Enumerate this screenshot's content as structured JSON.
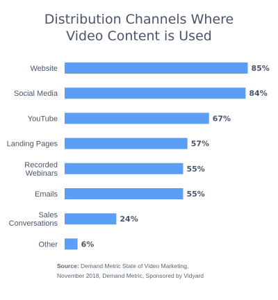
{
  "title_line1": "Distribution Channels Where",
  "title_line2": "Video Content is Used",
  "source_label": "Source:",
  "source_line1": "Demand Metric State of Video Marketing,",
  "source_line2": "November 2018, Demand Metric, Sponsored by Vidyard",
  "colors": {
    "bar": "#5b9ef5",
    "text": "#4a5568"
  },
  "chart_data": {
    "type": "bar",
    "orientation": "horizontal",
    "title": "Distribution Channels Where Video Content is Used",
    "categories": [
      [
        "Website"
      ],
      [
        "Social Media"
      ],
      [
        "YouTube"
      ],
      [
        "Landing Pages"
      ],
      [
        "Recorded",
        "Webinars"
      ],
      [
        "Emails"
      ],
      [
        "Sales",
        "Conversations"
      ],
      [
        "Other"
      ]
    ],
    "values": [
      85,
      84,
      67,
      57,
      55,
      55,
      24,
      6
    ],
    "value_labels": [
      "85%",
      "84%",
      "67%",
      "57%",
      "55%",
      "55%",
      "24%",
      "6%"
    ],
    "unit": "%",
    "xlim": [
      0,
      100
    ],
    "grid": false,
    "legend": "none"
  }
}
